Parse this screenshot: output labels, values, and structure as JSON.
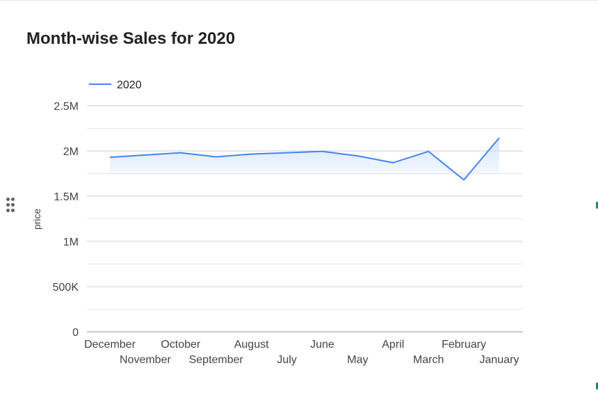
{
  "chart_data": {
    "type": "line",
    "title": "Month-wise Sales for 2020",
    "xlabel": "",
    "ylabel": "price",
    "categories": [
      "December",
      "November",
      "October",
      "September",
      "August",
      "July",
      "June",
      "May",
      "April",
      "March",
      "February",
      "January"
    ],
    "series": [
      {
        "name": "2020",
        "color": "#4285f4",
        "values": [
          1930000,
          1955000,
          1980000,
          1935000,
          1965000,
          1980000,
          1995000,
          1945000,
          1870000,
          1995000,
          1680000,
          2145000
        ]
      }
    ],
    "ylim": [
      0,
      2500000
    ],
    "yticks": [
      {
        "value": 0,
        "label": "0"
      },
      {
        "value": 500000,
        "label": "500K"
      },
      {
        "value": 1000000,
        "label": "1M"
      },
      {
        "value": 1500000,
        "label": "1.5M"
      },
      {
        "value": 2000000,
        "label": "2M"
      },
      {
        "value": 2500000,
        "label": "2.5M"
      }
    ],
    "minor_gridlines": true,
    "grid": true,
    "legend_position": "top-left",
    "area_fill": true,
    "area_fill_color": "#d2e3fc"
  },
  "ui": {
    "drag_handle_icon": "drag-dots-icon"
  }
}
